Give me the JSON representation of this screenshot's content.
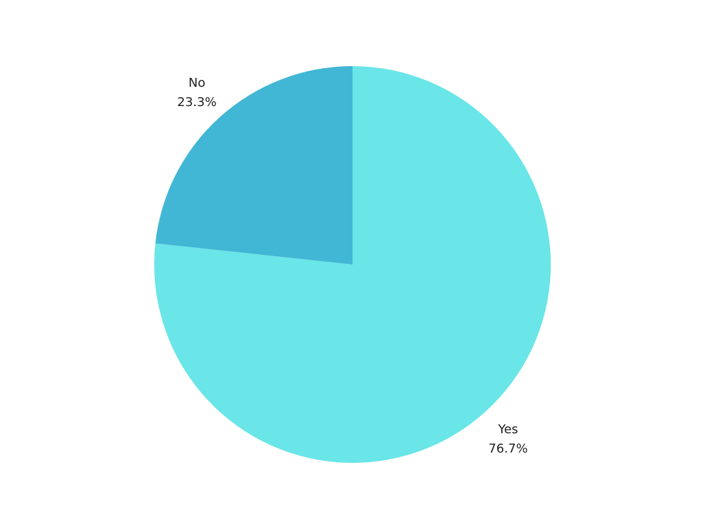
{
  "chart_data": {
    "type": "pie",
    "title": "",
    "start_angle": "12 o'clock",
    "direction": "clockwise",
    "slices": [
      {
        "label": "Yes",
        "value": 76.7,
        "value_label": "76.7%",
        "color": "#6ae5e8"
      },
      {
        "label": "No",
        "value": 23.3,
        "value_label": "23.3%",
        "color": "#42b6d5"
      }
    ],
    "legend": "none"
  }
}
